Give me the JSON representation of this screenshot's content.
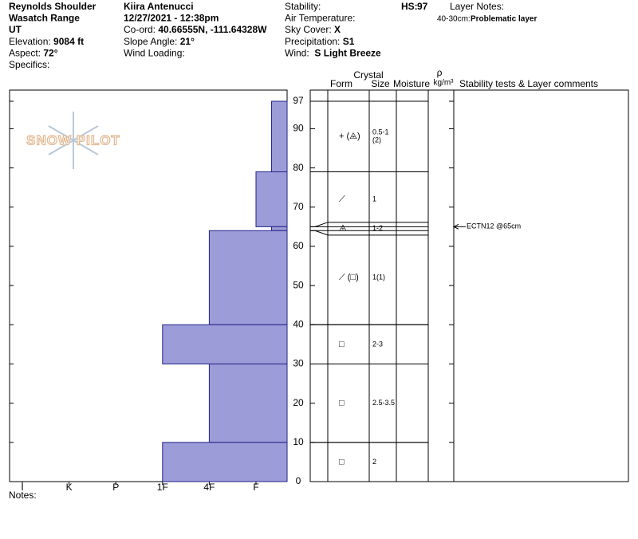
{
  "header": {
    "col1": [
      {
        "label": "Reynolds Shoulder",
        "bold": true
      },
      {
        "label": "Wasatch Range",
        "bold": true
      },
      {
        "label": "UT",
        "bold": true
      },
      {
        "label": "Elevation:",
        "value": "9084 ft"
      },
      {
        "label": "Aspect:",
        "value": "72°"
      },
      {
        "label": "Specifics:"
      }
    ],
    "col2": [
      {
        "label": "Kiira Antenucci",
        "bold": true
      },
      {
        "label": "12/27/2021 - 12:38pm",
        "bold": true
      },
      {
        "label": "Co-ord:",
        "value": "40.66555N, -111.64328W"
      },
      {
        "label": "Slope Angle:",
        "value": "21°"
      },
      {
        "label": "Wind Loading:"
      }
    ],
    "col3": [
      {
        "label": "Stability:"
      },
      {
        "label": "Air Temperature:"
      },
      {
        "label": "Sky Cover:",
        "value": "X"
      },
      {
        "label": "Precipitation:",
        "value": "S1"
      },
      {
        "label": "Wind:",
        "value": " S Light Breeze"
      }
    ],
    "hs_label": "HS:",
    "hs_value": "97",
    "layer_notes_title": "Layer Notes:",
    "layer_note_range": "40-30cm:",
    "layer_note_text": "Problematic layer"
  },
  "logo": "SNOW PILOT",
  "columns": {
    "crystal": "Crystal",
    "form": "Form",
    "size": "Size",
    "moisture": "Moisture",
    "rho": "ρ",
    "density_unit": "kg/m³",
    "comments": "Stability tests & Layer comments"
  },
  "chart_data": {
    "type": "snow-profile",
    "ylim": [
      0,
      97
    ],
    "yticks": [
      0,
      10,
      20,
      30,
      40,
      50,
      60,
      70,
      80,
      90,
      97
    ],
    "hardness_scale": [
      "I",
      "K",
      "P",
      "1F",
      "4F",
      "F"
    ],
    "layers": [
      {
        "top": 97,
        "bottom": 79,
        "hardness": "F-",
        "form": "+ (⨹)",
        "size": [
          "0.5-1",
          "(2)"
        ]
      },
      {
        "top": 79,
        "bottom": 65,
        "hardness": "F",
        "form": "⟋",
        "size": [
          "1"
        ]
      },
      {
        "top": 65,
        "bottom": 64,
        "hardness": "F-",
        "form": "⨹",
        "size": [
          "1-2"
        ]
      },
      {
        "top": 64,
        "bottom": 40,
        "hardness": "4F",
        "form": "⟋ (□)",
        "size": [
          "1(1)"
        ]
      },
      {
        "top": 40,
        "bottom": 30,
        "hardness": "1F",
        "form": "□",
        "size": [
          "2-3"
        ]
      },
      {
        "top": 30,
        "bottom": 10,
        "hardness": "4F",
        "form": "□",
        "size": [
          "2.5-3.5"
        ]
      },
      {
        "top": 10,
        "bottom": 0,
        "hardness": "1F",
        "form": "□",
        "size": [
          "2"
        ]
      }
    ],
    "tests": [
      {
        "depth": 65,
        "label": "ECTN12 @65cm"
      }
    ]
  },
  "notes_label": "Notes:"
}
